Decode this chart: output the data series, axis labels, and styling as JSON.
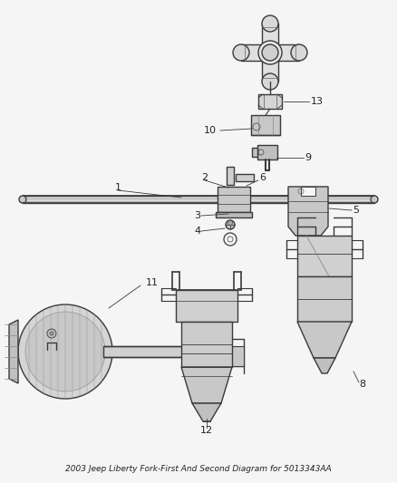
{
  "title": "2003 Jeep Liberty Fork-First And Second Diagram for 5013343AA",
  "bg_color": "#f5f5f5",
  "line_color": "#3a3a3a",
  "text_color": "#222222",
  "label_fs": 8,
  "title_fs": 6.5,
  "fig_w": 4.38,
  "fig_h": 5.33,
  "dpi": 100
}
